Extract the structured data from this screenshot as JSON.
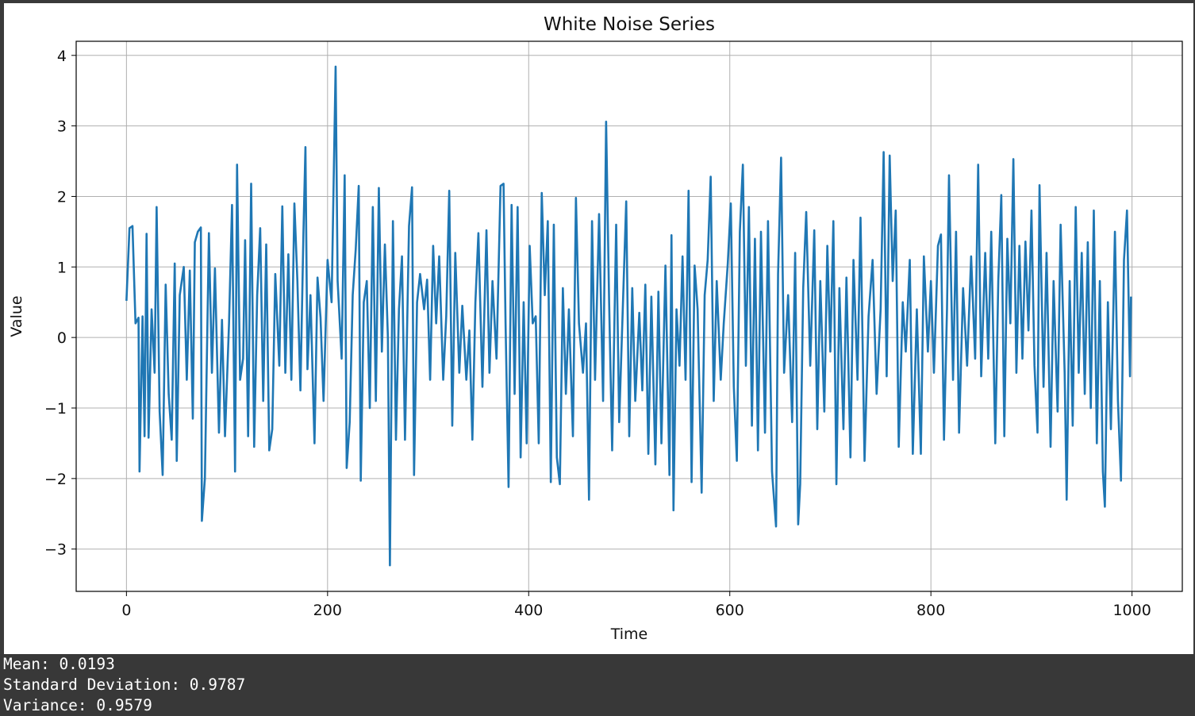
{
  "chart_data": {
    "type": "line",
    "title": "White Noise Series",
    "xlabel": "Time",
    "ylabel": "Value",
    "xlim": [
      -50,
      1050
    ],
    "ylim": [
      -3.6,
      4.2
    ],
    "xticks": [
      0,
      200,
      400,
      600,
      800,
      1000
    ],
    "yticks": [
      -3,
      -2,
      -1,
      0,
      1,
      2,
      3,
      4
    ],
    "grid": true,
    "line_color": "#1f77b4",
    "series": [
      {
        "points": [
          [
            0,
            0.52
          ],
          [
            3,
            1.55
          ],
          [
            6,
            1.58
          ],
          [
            9,
            0.2
          ],
          [
            12,
            0.28
          ],
          [
            13,
            -1.9
          ],
          [
            16,
            0.3
          ],
          [
            18,
            -1.4
          ],
          [
            20,
            1.47
          ],
          [
            22,
            -1.42
          ],
          [
            25,
            0.4
          ],
          [
            28,
            -0.5
          ],
          [
            30,
            1.85
          ],
          [
            33,
            -1.05
          ],
          [
            36,
            -1.95
          ],
          [
            39,
            0.75
          ],
          [
            42,
            -0.8
          ],
          [
            45,
            -1.45
          ],
          [
            48,
            1.05
          ],
          [
            50,
            -1.75
          ],
          [
            53,
            0.6
          ],
          [
            57,
            1.0
          ],
          [
            60,
            -0.6
          ],
          [
            63,
            0.95
          ],
          [
            66,
            -1.15
          ],
          [
            68,
            1.35
          ],
          [
            71,
            1.5
          ],
          [
            74,
            1.56
          ],
          [
            75,
            -2.6
          ],
          [
            78,
            -2.0
          ],
          [
            82,
            1.48
          ],
          [
            85,
            -0.5
          ],
          [
            88,
            0.98
          ],
          [
            92,
            -1.35
          ],
          [
            95,
            0.25
          ],
          [
            98,
            -1.4
          ],
          [
            102,
            0.2
          ],
          [
            105,
            1.88
          ],
          [
            108,
            -1.9
          ],
          [
            110,
            2.45
          ],
          [
            113,
            -0.6
          ],
          [
            116,
            -0.3
          ],
          [
            118,
            1.38
          ],
          [
            121,
            -1.4
          ],
          [
            124,
            2.18
          ],
          [
            127,
            -1.55
          ],
          [
            130,
            0.6
          ],
          [
            133,
            1.55
          ],
          [
            136,
            -0.9
          ],
          [
            139,
            1.32
          ],
          [
            142,
            -1.6
          ],
          [
            145,
            -1.3
          ],
          [
            148,
            0.9
          ],
          [
            152,
            -0.4
          ],
          [
            155,
            1.86
          ],
          [
            158,
            -0.5
          ],
          [
            161,
            1.18
          ],
          [
            164,
            -0.6
          ],
          [
            167,
            1.9
          ],
          [
            170,
            0.8
          ],
          [
            173,
            -0.75
          ],
          [
            176,
            1.48
          ],
          [
            178,
            2.7
          ],
          [
            180,
            -0.45
          ],
          [
            183,
            0.6
          ],
          [
            187,
            -1.5
          ],
          [
            190,
            0.85
          ],
          [
            193,
            0.28
          ],
          [
            196,
            -0.9
          ],
          [
            200,
            1.1
          ],
          [
            204,
            0.5
          ],
          [
            208,
            3.84
          ],
          [
            210,
            0.8
          ],
          [
            214,
            -0.3
          ],
          [
            217,
            2.3
          ],
          [
            219,
            -1.85
          ],
          [
            222,
            -1.2
          ],
          [
            225,
            0.6
          ],
          [
            228,
            1.25
          ],
          [
            231,
            2.15
          ],
          [
            233,
            -2.03
          ],
          [
            236,
            0.5
          ],
          [
            239,
            0.8
          ],
          [
            242,
            -1.0
          ],
          [
            245,
            1.85
          ],
          [
            248,
            -0.9
          ],
          [
            251,
            2.12
          ],
          [
            254,
            -0.2
          ],
          [
            257,
            1.32
          ],
          [
            260,
            0.0
          ],
          [
            262,
            -3.23
          ],
          [
            265,
            1.65
          ],
          [
            268,
            -1.45
          ],
          [
            271,
            0.4
          ],
          [
            274,
            1.15
          ],
          [
            277,
            -1.45
          ],
          [
            281,
            1.58
          ],
          [
            284,
            2.13
          ],
          [
            286,
            -1.95
          ],
          [
            289,
            0.5
          ],
          [
            292,
            0.9
          ],
          [
            296,
            0.4
          ],
          [
            299,
            0.82
          ],
          [
            302,
            -0.6
          ],
          [
            305,
            1.3
          ],
          [
            308,
            0.2
          ],
          [
            311,
            1.15
          ],
          [
            315,
            -0.6
          ],
          [
            318,
            0.3
          ],
          [
            321,
            2.08
          ],
          [
            324,
            -1.25
          ],
          [
            327,
            1.2
          ],
          [
            331,
            -0.5
          ],
          [
            334,
            0.45
          ],
          [
            338,
            -0.6
          ],
          [
            341,
            0.1
          ],
          [
            344,
            -1.45
          ],
          [
            347,
            0.5
          ],
          [
            350,
            1.48
          ],
          [
            354,
            -0.7
          ],
          [
            358,
            1.52
          ],
          [
            361,
            -0.5
          ],
          [
            364,
            0.8
          ],
          [
            368,
            -0.3
          ],
          [
            372,
            2.15
          ],
          [
            375,
            2.18
          ],
          [
            377,
            0.2
          ],
          [
            380,
            -2.12
          ],
          [
            383,
            1.88
          ],
          [
            386,
            -0.8
          ],
          [
            389,
            1.85
          ],
          [
            392,
            -1.7
          ],
          [
            395,
            0.5
          ],
          [
            398,
            -1.5
          ],
          [
            401,
            1.3
          ],
          [
            404,
            0.2
          ],
          [
            407,
            0.3
          ],
          [
            410,
            -1.5
          ],
          [
            413,
            2.05
          ],
          [
            416,
            0.6
          ],
          [
            419,
            1.65
          ],
          [
            422,
            -2.05
          ],
          [
            425,
            1.6
          ],
          [
            428,
            -1.7
          ],
          [
            431,
            -2.08
          ],
          [
            434,
            0.7
          ],
          [
            437,
            -0.8
          ],
          [
            440,
            0.4
          ],
          [
            444,
            -1.4
          ],
          [
            447,
            1.98
          ],
          [
            450,
            0.2
          ],
          [
            454,
            -0.5
          ],
          [
            457,
            0.2
          ],
          [
            460,
            -2.3
          ],
          [
            463,
            1.65
          ],
          [
            466,
            -0.6
          ],
          [
            470,
            1.75
          ],
          [
            474,
            -0.9
          ],
          [
            477,
            3.06
          ],
          [
            480,
            0.5
          ],
          [
            483,
            -1.6
          ],
          [
            487,
            1.6
          ],
          [
            490,
            -1.2
          ],
          [
            494,
            0.6
          ],
          [
            497,
            1.93
          ],
          [
            500,
            -1.4
          ],
          [
            503,
            0.7
          ],
          [
            506,
            -0.9
          ],
          [
            510,
            0.35
          ],
          [
            513,
            -0.75
          ],
          [
            516,
            0.75
          ],
          [
            519,
            -1.65
          ],
          [
            522,
            0.58
          ],
          [
            526,
            -1.8
          ],
          [
            529,
            0.65
          ],
          [
            532,
            -1.5
          ],
          [
            536,
            1.02
          ],
          [
            540,
            -1.95
          ],
          [
            542,
            1.45
          ],
          [
            544,
            -2.45
          ],
          [
            547,
            0.4
          ],
          [
            550,
            -0.4
          ],
          [
            553,
            1.15
          ],
          [
            556,
            -0.6
          ],
          [
            559,
            2.08
          ],
          [
            562,
            -2.05
          ],
          [
            565,
            1.02
          ],
          [
            568,
            0.4
          ],
          [
            572,
            -2.2
          ],
          [
            575,
            0.6
          ],
          [
            578,
            1.1
          ],
          [
            581,
            2.28
          ],
          [
            584,
            -0.9
          ],
          [
            587,
            0.8
          ],
          [
            591,
            -0.6
          ],
          [
            594,
            0.2
          ],
          [
            598,
            1.05
          ],
          [
            601,
            1.9
          ],
          [
            604,
            -0.7
          ],
          [
            607,
            -1.75
          ],
          [
            610,
            1.5
          ],
          [
            613,
            2.45
          ],
          [
            616,
            -0.4
          ],
          [
            619,
            1.85
          ],
          [
            622,
            -1.25
          ],
          [
            625,
            1.4
          ],
          [
            628,
            -1.6
          ],
          [
            631,
            1.5
          ],
          [
            635,
            -1.35
          ],
          [
            638,
            1.65
          ],
          [
            642,
            -1.9
          ],
          [
            646,
            -2.68
          ],
          [
            648,
            0.9
          ],
          [
            651,
            2.55
          ],
          [
            654,
            -0.5
          ],
          [
            658,
            0.6
          ],
          [
            662,
            -1.2
          ],
          [
            665,
            1.2
          ],
          [
            668,
            -2.65
          ],
          [
            670,
            -2.08
          ],
          [
            673,
            0.7
          ],
          [
            676,
            1.78
          ],
          [
            680,
            -0.4
          ],
          [
            684,
            1.52
          ],
          [
            687,
            -1.3
          ],
          [
            690,
            0.8
          ],
          [
            694,
            -1.05
          ],
          [
            697,
            1.3
          ],
          [
            700,
            -0.2
          ],
          [
            703,
            1.65
          ],
          [
            706,
            -2.08
          ],
          [
            709,
            0.7
          ],
          [
            713,
            -1.3
          ],
          [
            716,
            0.85
          ],
          [
            720,
            -1.7
          ],
          [
            723,
            1.1
          ],
          [
            727,
            -0.6
          ],
          [
            730,
            1.7
          ],
          [
            734,
            -1.75
          ],
          [
            738,
            0.3
          ],
          [
            742,
            1.1
          ],
          [
            746,
            -0.8
          ],
          [
            750,
            0.4
          ],
          [
            753,
            2.63
          ],
          [
            756,
            -0.55
          ],
          [
            759,
            2.58
          ],
          [
            762,
            0.8
          ],
          [
            765,
            1.8
          ],
          [
            768,
            -1.55
          ],
          [
            772,
            0.5
          ],
          [
            775,
            -0.2
          ],
          [
            779,
            1.1
          ],
          [
            782,
            -1.65
          ],
          [
            786,
            0.4
          ],
          [
            790,
            -1.65
          ],
          [
            793,
            1.15
          ],
          [
            797,
            -0.2
          ],
          [
            800,
            0.8
          ],
          [
            803,
            -0.5
          ],
          [
            807,
            1.3
          ],
          [
            810,
            1.46
          ],
          [
            813,
            -1.45
          ],
          [
            816,
            0.4
          ],
          [
            818,
            2.3
          ],
          [
            822,
            -0.6
          ],
          [
            825,
            1.5
          ],
          [
            828,
            -1.35
          ],
          [
            832,
            0.7
          ],
          [
            836,
            -0.4
          ],
          [
            840,
            1.15
          ],
          [
            844,
            -0.3
          ],
          [
            847,
            2.45
          ],
          [
            850,
            -0.55
          ],
          [
            854,
            1.2
          ],
          [
            857,
            -0.3
          ],
          [
            860,
            1.5
          ],
          [
            864,
            -1.5
          ],
          [
            867,
            0.8
          ],
          [
            870,
            2.02
          ],
          [
            873,
            -1.4
          ],
          [
            876,
            1.4
          ],
          [
            879,
            0.2
          ],
          [
            882,
            2.53
          ],
          [
            885,
            -0.5
          ],
          [
            888,
            1.3
          ],
          [
            891,
            -0.3
          ],
          [
            894,
            1.36
          ],
          [
            897,
            0.1
          ],
          [
            900,
            1.8
          ],
          [
            903,
            -0.4
          ],
          [
            906,
            -1.35
          ],
          [
            908,
            2.16
          ],
          [
            912,
            -0.7
          ],
          [
            915,
            1.2
          ],
          [
            919,
            -1.55
          ],
          [
            922,
            0.8
          ],
          [
            926,
            -1.05
          ],
          [
            929,
            1.6
          ],
          [
            933,
            -0.5
          ],
          [
            935,
            -2.3
          ],
          [
            938,
            0.8
          ],
          [
            941,
            -1.25
          ],
          [
            944,
            1.85
          ],
          [
            947,
            -0.5
          ],
          [
            950,
            1.2
          ],
          [
            953,
            -0.8
          ],
          [
            956,
            1.35
          ],
          [
            959,
            -1.0
          ],
          [
            962,
            1.8
          ],
          [
            965,
            -1.5
          ],
          [
            968,
            0.8
          ],
          [
            971,
            -1.9
          ],
          [
            973,
            -2.4
          ],
          [
            976,
            0.5
          ],
          [
            979,
            -1.3
          ],
          [
            983,
            1.5
          ],
          [
            986,
            -0.9
          ],
          [
            989,
            -2.03
          ],
          [
            992,
            1.1
          ],
          [
            995,
            1.8
          ],
          [
            998,
            -0.55
          ],
          [
            999,
            0.58
          ]
        ]
      }
    ]
  },
  "output": {
    "lines": [
      "Mean: 0.0193",
      "Standard Deviation: 0.9787",
      "Variance: 0.9579"
    ]
  }
}
